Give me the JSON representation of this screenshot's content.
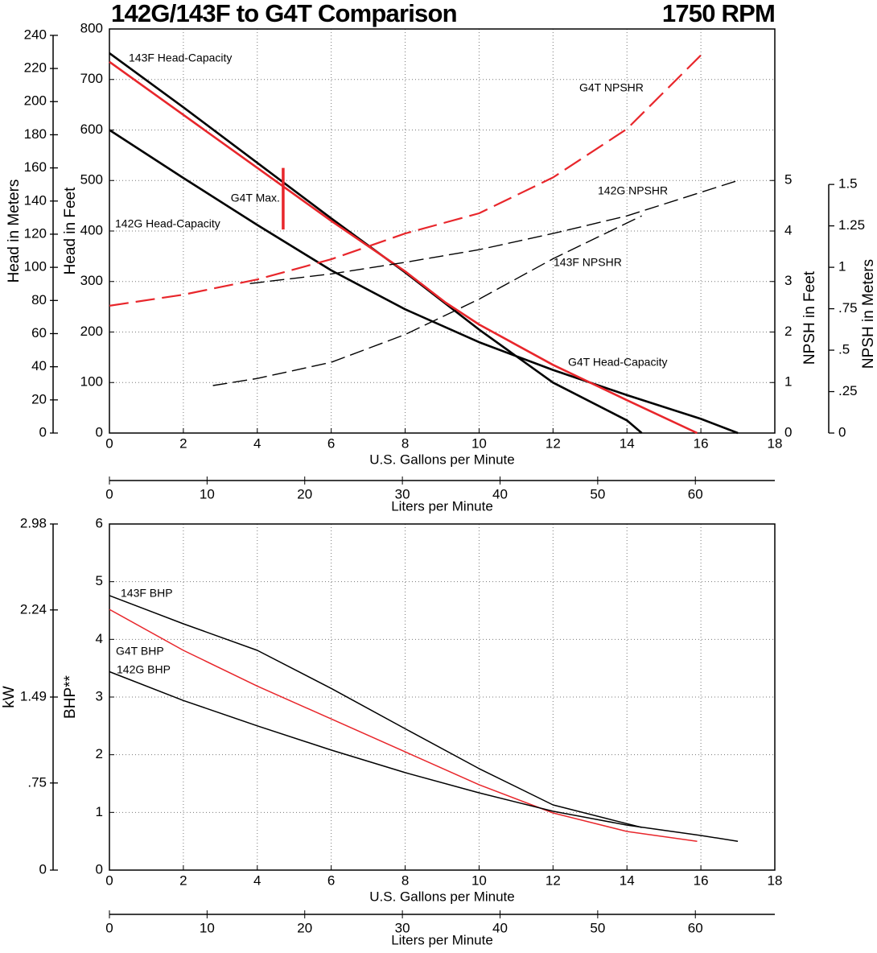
{
  "chart_data": [
    {
      "type": "line",
      "title": "142G/143F to G4T Comparison",
      "subtitle": "1750 RPM",
      "xlabel": "U.S. Gallons per Minute",
      "xlim": [
        0,
        18
      ],
      "xticks": [
        0,
        2,
        4,
        6,
        8,
        10,
        12,
        14,
        16,
        18
      ],
      "x2label": "Liters per Minute",
      "x2lim": [
        0,
        68.137
      ],
      "x2ticks": [
        0,
        10,
        20,
        30,
        40,
        50,
        60
      ],
      "ylabel": "Head in Feet",
      "ylim": [
        0,
        800
      ],
      "yticks": [
        0,
        100,
        200,
        300,
        400,
        500,
        600,
        700,
        800
      ],
      "y_meters_label": "Head in Meters",
      "y_meters_lim": [
        0,
        243.84
      ],
      "y_meters_ticks": [
        0,
        20,
        40,
        60,
        80,
        100,
        120,
        140,
        160,
        180,
        200,
        220,
        240
      ],
      "y2label": "NPSH in Feet",
      "y2lim": [
        0,
        8
      ],
      "y2ticks": [
        0,
        1,
        2,
        3,
        4,
        5
      ],
      "y3label": "NPSH in Meters",
      "y3lim": [
        0,
        2.438
      ],
      "y3ticks": [
        0,
        {
          "value": 0.25,
          "label": ".25"
        },
        {
          "value": 0.5,
          "label": ".5"
        },
        {
          "value": 0.75,
          "label": ".75"
        },
        1,
        1.25,
        1.5
      ],
      "grid": true,
      "series": [
        {
          "name": "143F Head-Capacity",
          "color": "#000000",
          "linestyle": "solid",
          "x": [
            0,
            2,
            4,
            6,
            8,
            10,
            12,
            14,
            14.4
          ],
          "values": [
            752,
            645,
            535,
            425,
            318,
            205,
            100,
            25,
            0
          ]
        },
        {
          "name": "142G Head-Capacity",
          "color": "#000000",
          "linestyle": "solid",
          "x": [
            0,
            2,
            4,
            6,
            8,
            10,
            12,
            14,
            16,
            17
          ],
          "values": [
            600,
            505,
            412,
            322,
            245,
            180,
            125,
            75,
            28,
            0
          ]
        },
        {
          "name": "G4T Head-Capacity",
          "color": "#e8262b",
          "linestyle": "solid",
          "x": [
            0,
            2,
            4,
            6,
            8,
            9.1,
            10,
            12,
            14,
            15.9
          ],
          "values": [
            735,
            630,
            525,
            420,
            320,
            258,
            215,
            135,
            65,
            0
          ]
        },
        {
          "name": "G4T NPSHR",
          "color": "#e8262b",
          "linestyle": "dashed",
          "axis": "y2",
          "x": [
            0,
            2,
            4,
            6,
            8,
            10,
            12,
            14,
            16
          ],
          "values": [
            2.52,
            2.74,
            3.04,
            3.44,
            3.95,
            4.35,
            5.06,
            6.02,
            7.48
          ]
        },
        {
          "name": "142G NPSHR",
          "color": "#000000",
          "label_color": "#1a7a4a",
          "linestyle": "dashed",
          "axis": "y2",
          "x": [
            3.8,
            6,
            8,
            10,
            12,
            14,
            17
          ],
          "values": [
            2.96,
            3.15,
            3.38,
            3.63,
            3.95,
            4.3,
            5.0
          ]
        },
        {
          "name": "143F NPSHR",
          "color": "#000000",
          "label_color": "#1a7a4a",
          "linestyle": "dashed",
          "axis": "y2",
          "x": [
            2.8,
            4,
            6,
            8,
            10,
            12,
            14.4
          ],
          "values": [
            0.94,
            1.08,
            1.4,
            1.95,
            2.65,
            3.45,
            4.3
          ]
        }
      ],
      "annotations": [
        {
          "text": "G4T Max.",
          "color": "#e8262b",
          "x": 4.7,
          "y": [
            403,
            525
          ]
        }
      ]
    },
    {
      "type": "line",
      "xlabel": "U.S. Gallons per Minute",
      "xlim": [
        0,
        18
      ],
      "xticks": [
        0,
        2,
        4,
        6,
        8,
        10,
        12,
        14,
        16,
        18
      ],
      "x2label": "Liters per Minute",
      "x2lim": [
        0,
        68.137
      ],
      "x2ticks": [
        0,
        10,
        20,
        30,
        40,
        50,
        60
      ],
      "ylabel": "BHP**",
      "ylim": [
        0,
        6
      ],
      "yticks": [
        0,
        1,
        2,
        3,
        4,
        5,
        6
      ],
      "y_kw_label": "kW",
      "y_kw_lim": [
        0,
        2.98
      ],
      "y_kw_ticks": [
        0,
        {
          "value": 0.75,
          "label": ".75"
        },
        1.49,
        2.24,
        2.98
      ],
      "grid": true,
      "series": [
        {
          "name": "143F BHP",
          "color": "#000000",
          "linestyle": "solid",
          "x": [
            0,
            2,
            4,
            6,
            8,
            10,
            12,
            14.4
          ],
          "values": [
            4.76,
            4.27,
            3.81,
            3.15,
            2.45,
            1.76,
            1.13,
            0.74
          ]
        },
        {
          "name": "G4T BHP",
          "color": "#e8262b",
          "linestyle": "solid",
          "x": [
            0,
            2,
            4,
            6,
            8,
            10,
            12,
            14,
            15.9
          ],
          "values": [
            4.52,
            3.81,
            3.19,
            2.62,
            2.05,
            1.48,
            0.99,
            0.67,
            0.5
          ]
        },
        {
          "name": "142G BHP",
          "color": "#000000",
          "linestyle": "solid",
          "x": [
            0,
            2,
            4,
            6,
            8,
            10,
            12,
            14,
            16,
            17
          ],
          "values": [
            3.44,
            2.94,
            2.5,
            2.08,
            1.69,
            1.34,
            1.02,
            0.78,
            0.6,
            0.5
          ]
        }
      ]
    }
  ]
}
